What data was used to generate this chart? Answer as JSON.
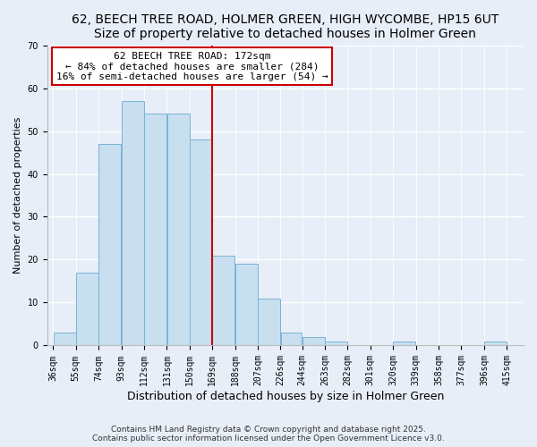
{
  "title1": "62, BEECH TREE ROAD, HOLMER GREEN, HIGH WYCOMBE, HP15 6UT",
  "title2": "Size of property relative to detached houses in Holmer Green",
  "xlabel": "Distribution of detached houses by size in Holmer Green",
  "ylabel": "Number of detached properties",
  "bar_left_edges": [
    36,
    55,
    74,
    93,
    112,
    131,
    150,
    169,
    188,
    207,
    226,
    244,
    263,
    282,
    301,
    320,
    339,
    358,
    377,
    396
  ],
  "bar_heights": [
    3,
    17,
    47,
    57,
    54,
    54,
    48,
    21,
    19,
    11,
    3,
    2,
    1,
    0,
    0,
    1,
    0,
    0,
    0,
    1
  ],
  "bar_widths": [
    19,
    19,
    19,
    19,
    19,
    19,
    19,
    19,
    19,
    19,
    18,
    19,
    19,
    19,
    19,
    19,
    19,
    19,
    19,
    19
  ],
  "tick_labels": [
    "36sqm",
    "55sqm",
    "74sqm",
    "93sqm",
    "112sqm",
    "131sqm",
    "150sqm",
    "169sqm",
    "188sqm",
    "207sqm",
    "226sqm",
    "244sqm",
    "263sqm",
    "282sqm",
    "301sqm",
    "320sqm",
    "339sqm",
    "358sqm",
    "377sqm",
    "396sqm",
    "415sqm"
  ],
  "tick_positions": [
    36,
    55,
    74,
    93,
    112,
    131,
    150,
    169,
    188,
    207,
    226,
    244,
    263,
    282,
    301,
    320,
    339,
    358,
    377,
    396,
    415
  ],
  "bar_color": "#c8dff0",
  "bar_edge_color": "#7ab3d4",
  "vline_x": 169,
  "vline_color": "#cc0000",
  "ylim": [
    0,
    70
  ],
  "yticks": [
    0,
    10,
    20,
    30,
    40,
    50,
    60,
    70
  ],
  "annotation_title": "62 BEECH TREE ROAD: 172sqm",
  "annotation_line1": "← 84% of detached houses are smaller (284)",
  "annotation_line2": "16% of semi-detached houses are larger (54) →",
  "annotation_box_color": "#ffffff",
  "annotation_box_edge": "#cc0000",
  "bg_color": "#e8eef8",
  "grid_color": "#ffffff",
  "footer1": "Contains HM Land Registry data © Crown copyright and database right 2025.",
  "footer2": "Contains public sector information licensed under the Open Government Licence v3.0.",
  "title1_fontsize": 10,
  "title2_fontsize": 9,
  "xlabel_fontsize": 9,
  "ylabel_fontsize": 8,
  "tick_fontsize": 7,
  "annotation_fontsize": 8,
  "footer_fontsize": 6.5
}
